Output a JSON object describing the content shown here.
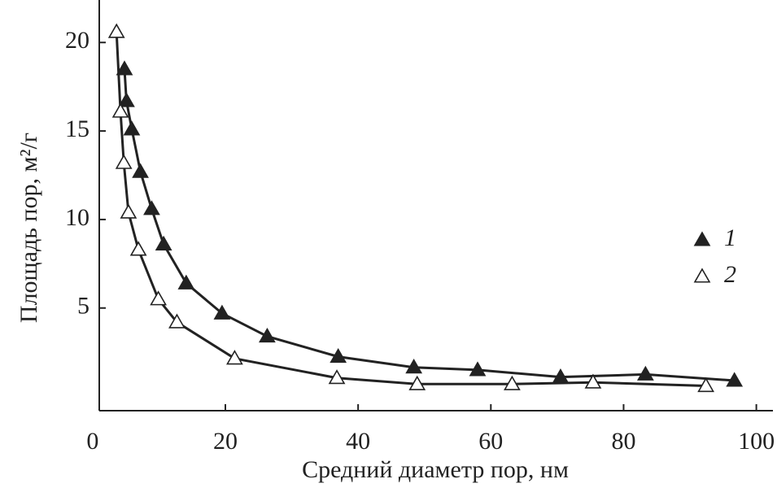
{
  "chart_data": {
    "type": "scatter",
    "x_label": "Средний диаметр пор, нм",
    "y_label": "Площадь пор, м²/г",
    "xlim": [
      1,
      102.5
    ],
    "ylim": [
      -0.8,
      22.4
    ],
    "xticks": [
      0,
      20,
      40,
      60,
      80,
      100
    ],
    "yticks": [
      5,
      10,
      15,
      20
    ],
    "legend": "right",
    "series": [
      {
        "name": "1",
        "color": "#222222",
        "marker": "filled-triangle",
        "x": [
          4.8,
          5.1,
          5.9,
          7.2,
          8.9,
          10.7,
          14.1,
          19.5,
          26.3,
          37.0,
          48.4,
          58.0,
          70.5,
          83.3,
          96.7
        ],
        "values": [
          18.5,
          16.7,
          15.1,
          12.7,
          10.6,
          8.6,
          6.4,
          4.7,
          3.4,
          2.25,
          1.65,
          1.5,
          1.1,
          1.25,
          0.9
        ]
      },
      {
        "name": "2",
        "color": "#222222",
        "marker": "open-triangle",
        "x": [
          3.6,
          4.2,
          4.7,
          5.4,
          6.9,
          9.9,
          12.7,
          21.4,
          36.8,
          48.9,
          63.2,
          75.4,
          92.4
        ],
        "values": [
          20.6,
          16.1,
          13.2,
          10.4,
          8.3,
          5.5,
          4.2,
          2.15,
          1.05,
          0.7,
          0.7,
          0.8,
          0.6
        ]
      }
    ]
  }
}
